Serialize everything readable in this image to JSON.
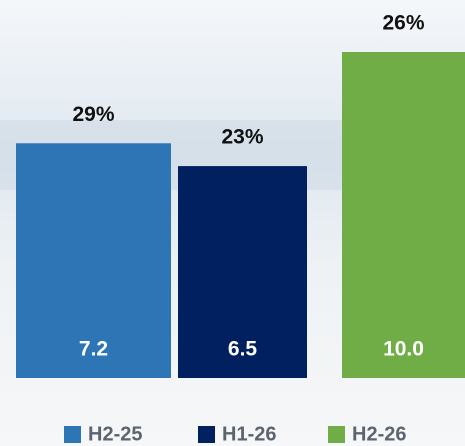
{
  "chart_data": {
    "type": "bar",
    "series": [
      {
        "name": "H2-25",
        "color": "#2e75b6",
        "values": [
          7.2
        ],
        "annotation": "29%"
      },
      {
        "name": "H1-26",
        "color": "#002060",
        "values": [
          6.5
        ],
        "annotation": "23%"
      },
      {
        "name": "H2-26",
        "color": "#70ad47",
        "values": [
          10
        ],
        "value_labels": [
          "10.0"
        ],
        "annotation": "26%"
      }
    ],
    "ylim": [
      0,
      10
    ],
    "legend": "bottom"
  }
}
